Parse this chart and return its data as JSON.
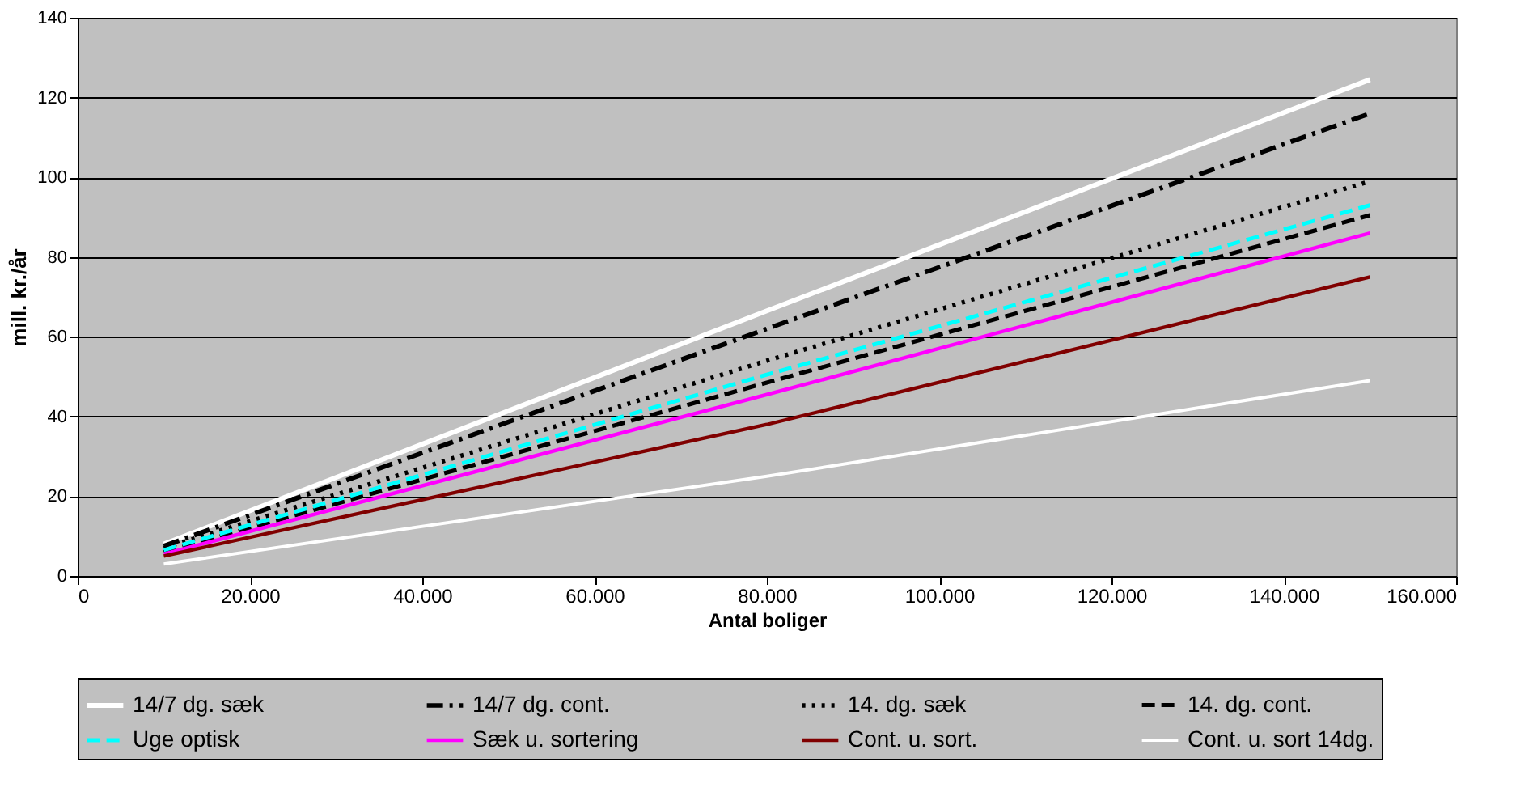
{
  "chart_data": {
    "type": "line",
    "xlabel": "Antal boliger",
    "ylabel": "mill. kr./år",
    "x": [
      10000,
      80000,
      150000
    ],
    "xlim": [
      0,
      160000
    ],
    "xticks": [
      0,
      {
        "value": 20000,
        "label": "20.000"
      },
      {
        "value": 40000,
        "label": "40.000"
      },
      {
        "value": 60000,
        "label": "60.000"
      },
      {
        "value": 80000,
        "label": "80.000"
      },
      {
        "value": 100000,
        "label": "100.000"
      },
      {
        "value": 120000,
        "label": "120.000"
      },
      {
        "value": 140000,
        "label": "140.000"
      },
      {
        "value": 160000,
        "label": "160.000"
      }
    ],
    "ylim": [
      0,
      140
    ],
    "yticks": [
      0,
      20,
      40,
      60,
      80,
      100,
      120,
      140
    ],
    "grid": "y",
    "legend": "bottom",
    "marker": "none",
    "series": [
      {
        "name": "14/7 dg. sæk",
        "color": "#ffffff",
        "line_style": "solid",
        "values": [
          8,
          66.5,
          124.5
        ]
      },
      {
        "name": "14/7 dg. cont.",
        "color": "#000000",
        "line_style": "dashdot",
        "values": [
          7.5,
          62,
          116
        ]
      },
      {
        "name": "14. dg. sæk",
        "color": "#000000",
        "line_style": "dotted",
        "values": [
          7,
          54,
          99
        ]
      },
      {
        "name": "14. dg. cont.",
        "color": "#000000",
        "line_style": "dashed",
        "values": [
          6,
          48.5,
          90.5
        ]
      },
      {
        "name": "Uge optisk",
        "color": "#00ffff",
        "line_style": "dashed",
        "values": [
          6.5,
          50.5,
          93
        ]
      },
      {
        "name": "Sæk u. sortering",
        "color": "#ff00ff",
        "line_style": "solid",
        "values": [
          5.5,
          45.5,
          86
        ]
      },
      {
        "name": "Cont. u. sort.",
        "color": "#800000",
        "line_style": "solid",
        "values": [
          5,
          38,
          75
        ]
      },
      {
        "name": "Cont. u. sort 14dg.",
        "color": "#ffffff",
        "line_style": "solid",
        "values": [
          3,
          25,
          49
        ]
      }
    ]
  }
}
